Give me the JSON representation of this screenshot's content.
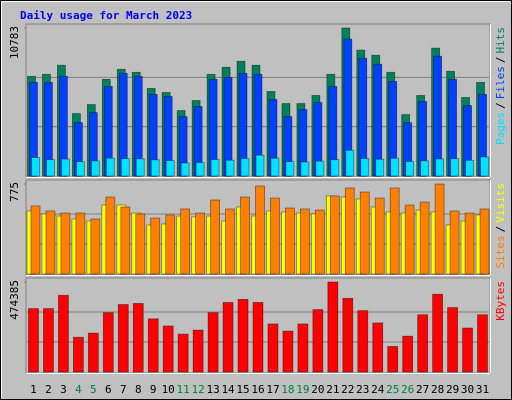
{
  "chart_data": [
    {
      "type": "bar",
      "title": "Daily usage for March 2023",
      "ylim": [
        0,
        10783
      ],
      "yticks": [
        10783
      ],
      "legend_separator": "/",
      "series": [
        {
          "name": "Hits",
          "color": "#00805c",
          "values": [
            7262,
            7408,
            8069,
            4548,
            5208,
            7042,
            7775,
            7555,
            6381,
            6088,
            4768,
            5501,
            7408,
            7922,
            8362,
            8069,
            6161,
            5281,
            5281,
            5868,
            7408,
            10783,
            9169,
            8802,
            7555,
            4474,
            5868,
            9315,
            7628,
            5721,
            6822
          ]
        },
        {
          "name": "Files",
          "color": "#0040ff",
          "values": [
            6822,
            6822,
            7262,
            3888,
            4621,
            6528,
            7482,
            7262,
            5941,
            5795,
            4328,
            5061,
            7042,
            7188,
            7482,
            7408,
            5575,
            4328,
            4841,
            5355,
            6528,
            9976,
            8582,
            8142,
            6895,
            3888,
            5428,
            8729,
            7042,
            5135,
            5941
          ]
        },
        {
          "name": "Pages",
          "color": "#00e0ff",
          "values": [
            1345,
            1190,
            1230,
            1050,
            1100,
            1300,
            1270,
            1250,
            1180,
            1120,
            950,
            980,
            1200,
            1150,
            1280,
            1520,
            1300,
            1050,
            1020,
            1080,
            1190,
            1880,
            1280,
            1220,
            1290,
            1060,
            1110,
            1240,
            1260,
            1140,
            1390
          ]
        }
      ]
    },
    {
      "type": "bar",
      "ylim": [
        0,
        775
      ],
      "yticks": [
        775
      ],
      "legend_separator": "/",
      "series": [
        {
          "name": "Visits",
          "color": "#ffff00",
          "values": [
            543,
            517,
            499,
            474,
            456,
            594,
            594,
            525,
            422,
            431,
            499,
            491,
            499,
            456,
            577,
            499,
            543,
            534,
            525,
            517,
            672,
            663,
            646,
            577,
            534,
            525,
            551,
            534,
            422,
            456,
            508
          ]
        },
        {
          "name": "Sites",
          "color": "#ff8000",
          "values": [
            586,
            543,
            525,
            525,
            474,
            663,
            577,
            517,
            482,
            508,
            560,
            525,
            637,
            560,
            663,
            758,
            654,
            568,
            560,
            551,
            672,
            741,
            706,
            654,
            741,
            594,
            620,
            775,
            543,
            525,
            560
          ]
        }
      ]
    },
    {
      "type": "bar",
      "ylim": [
        0,
        474385
      ],
      "yticks": [
        474385
      ],
      "categories": [
        "1",
        "2",
        "3",
        "4",
        "5",
        "6",
        "7",
        "8",
        "9",
        "10",
        "11",
        "12",
        "13",
        "14",
        "15",
        "16",
        "17",
        "18",
        "19",
        "20",
        "21",
        "22",
        "23",
        "24",
        "25",
        "26",
        "27",
        "28",
        "29",
        "30",
        "31"
      ],
      "category_colors": [
        "#000000",
        "#000000",
        "#000000",
        "#008040",
        "#008040",
        "#000000",
        "#000000",
        "#000000",
        "#000000",
        "#000000",
        "#008040",
        "#008040",
        "#000000",
        "#000000",
        "#000000",
        "#000000",
        "#000000",
        "#008040",
        "#008040",
        "#000000",
        "#000000",
        "#000000",
        "#000000",
        "#000000",
        "#008040",
        "#008040",
        "#000000",
        "#000000",
        "#000000",
        "#000000",
        "#000000"
      ],
      "series": [
        {
          "name": "KBytes",
          "color": "#ff0000",
          "values": [
            334224,
            334224,
            404303,
            183284,
            204847,
            312661,
            355786,
            361177,
            280316,
            242582,
            199456,
            221019,
            312661,
            366568,
            382740,
            366568,
            253363,
            215628,
            253363,
            328833,
            474385,
            388130,
            323442,
            258754,
            134768,
            188675,
            301879,
            409693,
            339614,
            231800,
            301879
          ]
        }
      ]
    }
  ]
}
